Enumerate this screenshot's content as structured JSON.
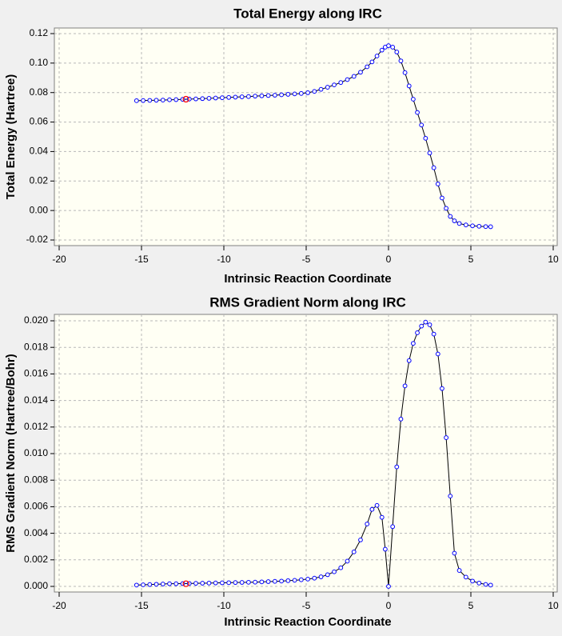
{
  "chart_data": [
    {
      "type": "line",
      "title": "Total Energy along IRC",
      "x_label": "Intrinsic Reaction Coordinate",
      "y_label": "Total Energy (Hartree)",
      "color": "#0000ff",
      "line_color": "#000000",
      "grid": true,
      "xlim": [
        -20,
        10
      ],
      "xticks": [
        -20,
        -15,
        -10,
        -5,
        0,
        5,
        10
      ],
      "ylim": [
        -0.02,
        0.12
      ],
      "yticks": [
        -0.02,
        {
          "value": 0,
          "label": "0.00"
        },
        0.02,
        0.04,
        0.06,
        0.08,
        {
          "value": 0.1,
          "label": "0.10"
        },
        0.12
      ],
      "x": [
        -15.3,
        -14.9,
        -14.5,
        -14.1,
        -13.7,
        -13.3,
        -12.9,
        -12.5,
        -12.1,
        -11.7,
        -11.3,
        -10.9,
        -10.5,
        -10.1,
        -9.7,
        -9.3,
        -8.9,
        -8.5,
        -8.1,
        -7.7,
        -7.3,
        -6.9,
        -6.5,
        -6.1,
        -5.7,
        -5.3,
        -4.9,
        -4.5,
        -4.1,
        -3.7,
        -3.3,
        -2.9,
        -2.5,
        -2.1,
        -1.7,
        -1.3,
        -1.0,
        -0.7,
        -0.4,
        -0.2,
        0,
        0.25,
        0.5,
        0.75,
        1.0,
        1.25,
        1.5,
        1.75,
        2.0,
        2.25,
        2.5,
        2.75,
        3.0,
        3.25,
        3.5,
        3.75,
        4.0,
        4.3,
        4.7,
        5.1,
        5.5,
        5.9,
        6.2
      ],
      "values": [
        0.0745,
        0.0746,
        0.0747,
        0.0748,
        0.0749,
        0.0751,
        0.0752,
        0.0754,
        0.0756,
        0.0757,
        0.0759,
        0.0761,
        0.0763,
        0.0765,
        0.0767,
        0.0769,
        0.0771,
        0.0773,
        0.0776,
        0.0778,
        0.078,
        0.0782,
        0.0785,
        0.0788,
        0.0791,
        0.0794,
        0.0799,
        0.0808,
        0.0822,
        0.0836,
        0.0852,
        0.0868,
        0.0888,
        0.091,
        0.0938,
        0.0975,
        0.1008,
        0.1048,
        0.1088,
        0.1108,
        0.1118,
        0.1108,
        0.1075,
        0.1015,
        0.0935,
        0.0845,
        0.0755,
        0.0665,
        0.058,
        0.049,
        0.039,
        0.029,
        0.018,
        0.0085,
        0.0015,
        -0.004,
        -0.007,
        -0.0088,
        -0.0098,
        -0.0104,
        -0.0107,
        -0.0109,
        -0.011
      ],
      "current_point": {
        "x": -12.3,
        "y": 0.0755,
        "color": "#ff0000"
      }
    },
    {
      "type": "line",
      "title": "RMS Gradient Norm along IRC",
      "x_label": "Intrinsic Reaction Coordinate",
      "y_label": "RMS Gradient Norm (Hartree/Bohr)",
      "color": "#0000ff",
      "line_color": "#000000",
      "grid": true,
      "xlim": [
        -20,
        10
      ],
      "xticks": [
        -20,
        -15,
        -10,
        -5,
        0,
        5,
        10
      ],
      "ylim": [
        0,
        0.02
      ],
      "yticks": [
        {
          "value": 0,
          "label": "0.000"
        },
        {
          "value": 0.002,
          "label": "0.002"
        },
        {
          "value": 0.004,
          "label": "0.004"
        },
        {
          "value": 0.006,
          "label": "0.006"
        },
        {
          "value": 0.008,
          "label": "0.008"
        },
        {
          "value": 0.01,
          "label": "0.010"
        },
        {
          "value": 0.012,
          "label": "0.012"
        },
        {
          "value": 0.014,
          "label": "0.014"
        },
        {
          "value": 0.016,
          "label": "0.016"
        },
        {
          "value": 0.018,
          "label": "0.018"
        },
        {
          "value": 0.02,
          "label": "0.020"
        }
      ],
      "x": [
        -15.3,
        -14.9,
        -14.5,
        -14.1,
        -13.7,
        -13.3,
        -12.9,
        -12.5,
        -12.1,
        -11.7,
        -11.3,
        -10.9,
        -10.5,
        -10.1,
        -9.7,
        -9.3,
        -8.9,
        -8.5,
        -8.1,
        -7.7,
        -7.3,
        -6.9,
        -6.5,
        -6.1,
        -5.7,
        -5.3,
        -4.9,
        -4.5,
        -4.1,
        -3.7,
        -3.3,
        -2.9,
        -2.5,
        -2.1,
        -1.7,
        -1.3,
        -1.0,
        -0.7,
        -0.4,
        -0.2,
        0,
        0.25,
        0.5,
        0.75,
        1.0,
        1.25,
        1.5,
        1.75,
        2.0,
        2.25,
        2.5,
        2.75,
        3.0,
        3.25,
        3.5,
        3.75,
        4.0,
        4.3,
        4.7,
        5.1,
        5.5,
        5.9,
        6.2
      ],
      "values": [
        0.0001,
        0.00012,
        0.00014,
        0.00016,
        0.00018,
        0.0002,
        0.0002,
        0.00021,
        0.00022,
        0.00023,
        0.00024,
        0.00025,
        0.00026,
        0.00027,
        0.00028,
        0.00029,
        0.0003,
        0.00031,
        0.00032,
        0.00034,
        0.00036,
        0.00038,
        0.0004,
        0.00043,
        0.00046,
        0.0005,
        0.00055,
        0.00062,
        0.00072,
        0.00088,
        0.0011,
        0.0014,
        0.0019,
        0.0026,
        0.0035,
        0.0047,
        0.0058,
        0.0061,
        0.0052,
        0.0028,
        0.0,
        0.0045,
        0.009,
        0.0126,
        0.0151,
        0.017,
        0.0183,
        0.0191,
        0.0196,
        0.0199,
        0.0197,
        0.019,
        0.0175,
        0.0149,
        0.0112,
        0.0068,
        0.0025,
        0.0012,
        0.0007,
        0.0004,
        0.00025,
        0.00015,
        0.0001
      ],
      "current_point": {
        "x": -12.3,
        "y": 0.0002,
        "color": "#ff0000"
      }
    }
  ]
}
